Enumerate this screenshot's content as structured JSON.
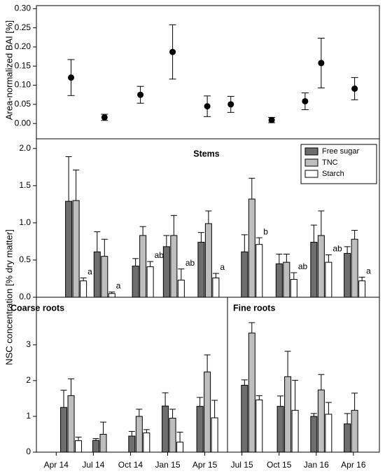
{
  "x_axis": {
    "xlim": [
      -1.6,
      26.1
    ],
    "xticks": [
      {
        "value": 0,
        "label": "Apr 14"
      },
      {
        "value": 3,
        "label": "Jul 14"
      },
      {
        "value": 6,
        "label": "Oct 14"
      },
      {
        "value": 9,
        "label": "Jan 15"
      },
      {
        "value": 12,
        "label": "Apr 15"
      },
      {
        "value": 15,
        "label": "Jul 15"
      },
      {
        "value": 18,
        "label": "Oct 15"
      },
      {
        "value": 21,
        "label": "Jan 16"
      },
      {
        "value": 24,
        "label": "Apr 16"
      }
    ]
  },
  "chart_data": [
    {
      "type": "scatter",
      "ylabel": "Area-normalized BAI [%]",
      "ylim": [
        -0.04,
        0.308
      ],
      "yticks": [
        {
          "value": 0,
          "label": "0.00"
        },
        {
          "value": 0.05,
          "label": "0.05"
        },
        {
          "value": 0.1,
          "label": "0.10"
        },
        {
          "value": 0.15,
          "label": "0.15"
        },
        {
          "value": 0.2,
          "label": "0.20"
        },
        {
          "value": 0.25,
          "label": "0.25"
        },
        {
          "value": 0.3,
          "label": "0.30"
        }
      ],
      "color": "#000000",
      "x": [
        1.2,
        3.9,
        6.8,
        9.4,
        12.2,
        14.1,
        17.4,
        20.1,
        21.4,
        24.1
      ],
      "values": [
        0.12,
        0.016,
        0.075,
        0.187,
        0.045,
        0.05,
        0.009,
        0.058,
        0.158,
        0.091
      ],
      "errors": [
        0.047,
        0.008,
        0.022,
        0.071,
        0.027,
        0.021,
        0.007,
        0.022,
        0.065,
        0.029
      ]
    },
    {
      "type": "bar",
      "title": "Stems",
      "ylabel": "NSC concentration [% dry matter]",
      "ylim": [
        0,
        2.13
      ],
      "yticks": [
        {
          "value": 0,
          "label": "0.0"
        },
        {
          "value": 0.5,
          "label": "0.5"
        },
        {
          "value": 1,
          "label": "1.0"
        },
        {
          "value": 1.5,
          "label": "1.5"
        },
        {
          "value": 2,
          "label": "2.0"
        }
      ],
      "legend": "upper right",
      "x": [
        1.6,
        3.9,
        7.0,
        9.5,
        12.3,
        15.8,
        18.6,
        21.4,
        24.1
      ],
      "series": [
        {
          "name": "Free sugar",
          "color": "#6e6e6e",
          "values": [
            1.29,
            0.61,
            0.42,
            0.68,
            0.74,
            0.61,
            0.45,
            0.74,
            0.59
          ],
          "errors": [
            0.6,
            0.27,
            0.1,
            0.15,
            0.13,
            0.23,
            0.13,
            0.23,
            0.09
          ]
        },
        {
          "name": "TNC",
          "color": "#bebebe",
          "values": [
            1.3,
            0.55,
            0.83,
            0.83,
            0.99,
            1.32,
            0.47,
            0.83,
            0.78
          ],
          "errors": [
            0.41,
            0.23,
            0.12,
            0.27,
            0.17,
            0.28,
            0.11,
            0.33,
            0.12
          ]
        },
        {
          "name": "Starch",
          "color": "#ffffff",
          "values": [
            0.22,
            0.05,
            0.41,
            0.23,
            0.26,
            0.71,
            0.24,
            0.47,
            0.22
          ],
          "errors": [
            0.04,
            0.02,
            0.07,
            0.15,
            0.06,
            0.09,
            0.09,
            0.1,
            0.05
          ]
        }
      ],
      "annotations": [
        "a",
        "a",
        "ab",
        "ab",
        "a",
        "b",
        "ab",
        "ab",
        "a"
      ]
    },
    {
      "type": "bar",
      "title": "Coarse roots",
      "ylim": [
        0,
        4.33
      ],
      "yticks": [
        0,
        1,
        2,
        3
      ],
      "x": [
        1.2,
        3.8,
        6.7,
        9.4,
        12.2
      ],
      "series": [
        {
          "color": "#6e6e6e",
          "values": [
            1.25,
            0.33,
            0.45,
            1.29,
            1.28
          ],
          "errors": [
            0.48,
            0.05,
            0.13,
            0.37,
            0.25
          ]
        },
        {
          "color": "#bebebe",
          "values": [
            1.58,
            0.5,
            1.0,
            0.95,
            2.24
          ],
          "errors": [
            0.47,
            0.34,
            0.2,
            0.25,
            0.48
          ]
        },
        {
          "color": "#ffffff",
          "values": [
            0.32,
            null,
            0.54,
            0.28,
            0.96
          ],
          "errors": [
            0.1,
            null,
            0.09,
            0.28,
            0.49
          ]
        }
      ]
    },
    {
      "type": "bar",
      "title": "Fine roots",
      "ylim": [
        0,
        4.33
      ],
      "x": [
        15.8,
        18.7,
        21.4,
        24.1
      ],
      "series": [
        {
          "color": "#6e6e6e",
          "values": [
            1.87,
            1.28,
            1.0,
            0.79
          ],
          "errors": [
            0.15,
            0.29,
            0.08,
            0.29
          ]
        },
        {
          "color": "#bebebe",
          "values": [
            3.33,
            2.11,
            1.74,
            1.17
          ],
          "errors": [
            0.29,
            0.71,
            0.43,
            0.48
          ]
        },
        {
          "color": "#ffffff",
          "values": [
            1.46,
            1.17,
            1.06,
            null
          ],
          "errors": [
            0.12,
            0.84,
            0.33,
            null
          ]
        }
      ]
    }
  ]
}
